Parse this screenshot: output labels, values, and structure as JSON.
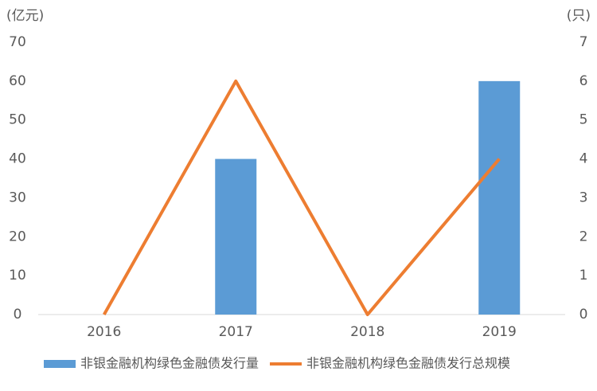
{
  "chart_data": {
    "type": "bar_line",
    "y_label": "(亿元)",
    "y2_label": "(只)",
    "categories": [
      "2016",
      "2017",
      "2018",
      "2019"
    ],
    "series": [
      {
        "name": "非银金融机构绿色金融债发行量",
        "type": "bar",
        "axis": "y2",
        "color": "#5b9bd5",
        "values": [
          0,
          4,
          0,
          6
        ]
      },
      {
        "name": "非银金融机构绿色金融债发行总规模",
        "type": "line",
        "axis": "y",
        "color": "#ed7d31",
        "values": [
          0,
          60,
          0,
          40
        ]
      }
    ],
    "ylim": [
      0,
      70
    ],
    "yticks": [
      0,
      10,
      20,
      30,
      40,
      50,
      60,
      70
    ],
    "y2lim": [
      0,
      7
    ],
    "y2ticks": [
      0,
      1,
      2,
      3,
      4,
      5,
      6,
      7
    ],
    "grid": false,
    "legend": "bottom"
  }
}
